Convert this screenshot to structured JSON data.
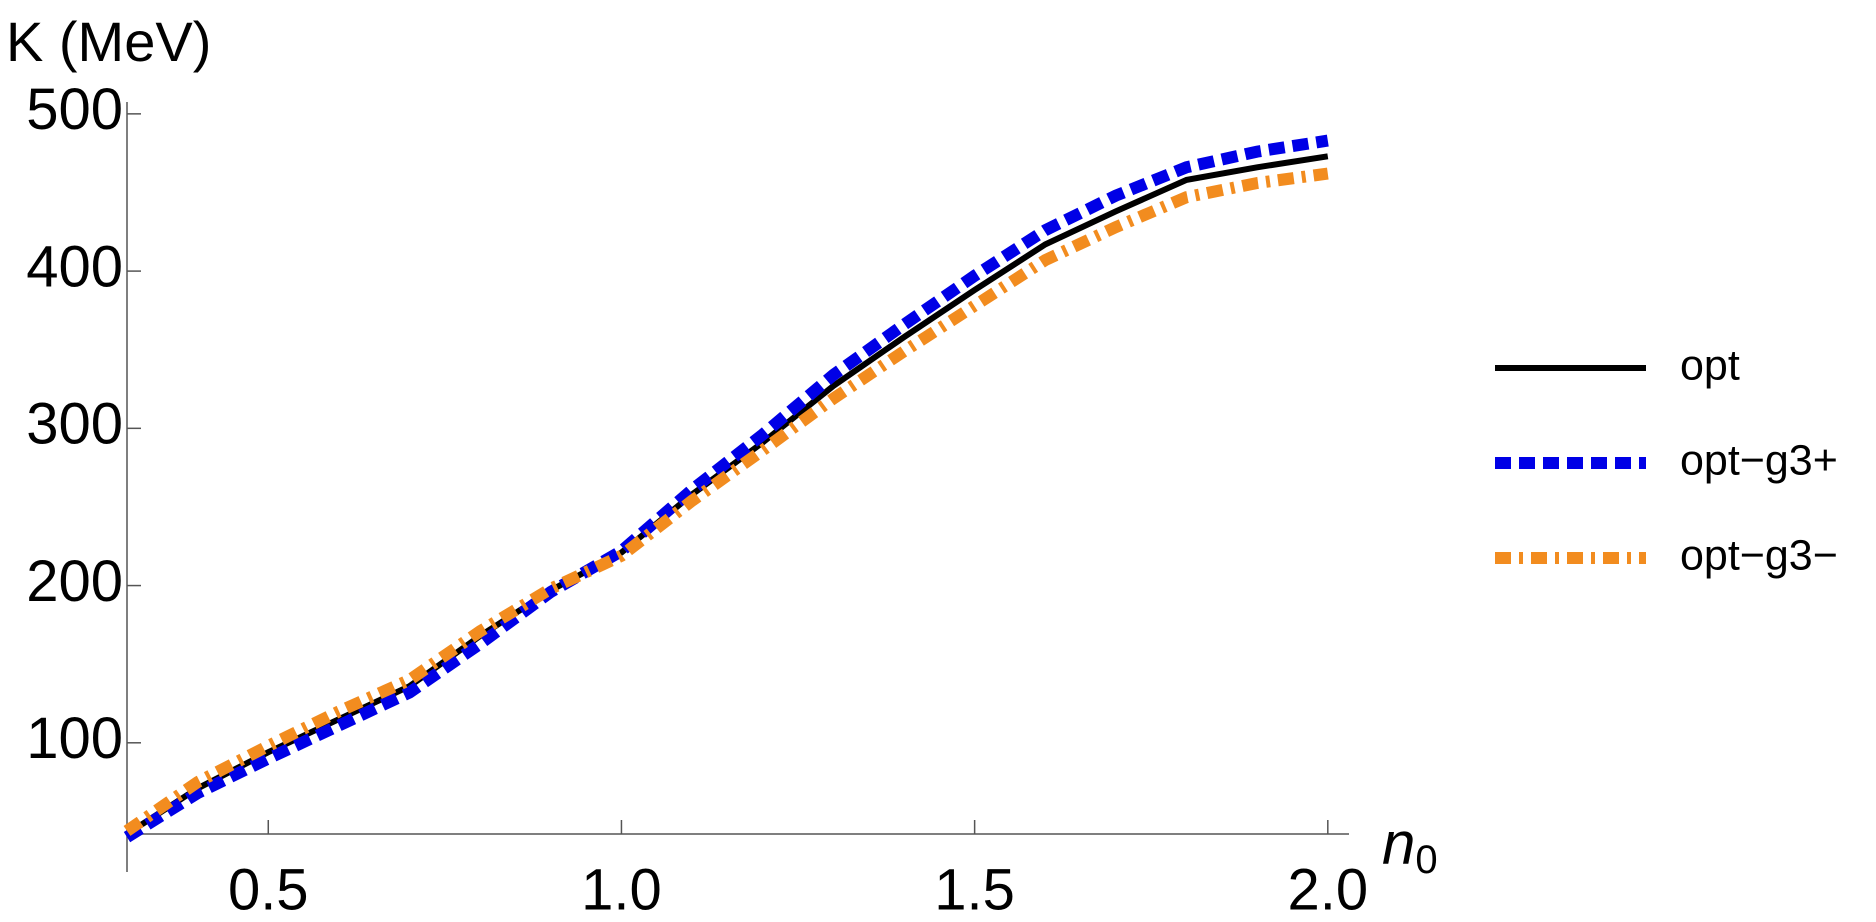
{
  "chart_data": {
    "type": "line",
    "ylabel": "K (MeV)",
    "xlabel": "n",
    "xlabel_subscript": "0",
    "x": [
      0.3,
      0.4,
      0.5,
      0.6,
      0.7,
      0.8,
      0.9,
      1.0,
      1.1,
      1.2,
      1.3,
      1.4,
      1.5,
      1.6,
      1.7,
      1.8,
      1.9,
      2.0
    ],
    "series": [
      {
        "name": "opt",
        "color": "#000000",
        "style": "solid",
        "values": [
          42,
          71,
          94,
          115,
          136,
          168,
          197,
          221,
          258,
          291,
          327,
          358,
          388,
          417,
          438,
          458,
          466,
          473
        ]
      },
      {
        "name": "opt−g3+",
        "color": "#0000e6",
        "style": "dashed",
        "values": [
          40,
          68,
          90,
          111,
          132,
          163,
          196,
          222,
          261,
          296,
          334,
          366,
          397,
          426,
          448,
          466,
          476,
          483
        ]
      },
      {
        "name": "opt−g3−",
        "color": "#f28c1f",
        "style": "dashdot",
        "values": [
          44,
          75,
          98,
          120,
          140,
          171,
          198,
          219,
          254,
          286,
          319,
          349,
          378,
          407,
          428,
          447,
          456,
          462
        ]
      }
    ],
    "xlim": [
      0.3,
      2.03
    ],
    "ylim": [
      42,
      505
    ],
    "xticks": [
      0.5,
      {
        "value": 1,
        "label": "1.0"
      },
      1.5,
      {
        "value": 2,
        "label": "2.0"
      }
    ],
    "yticks": [
      100,
      200,
      300,
      400,
      500
    ],
    "grid": false,
    "legend": "right"
  }
}
